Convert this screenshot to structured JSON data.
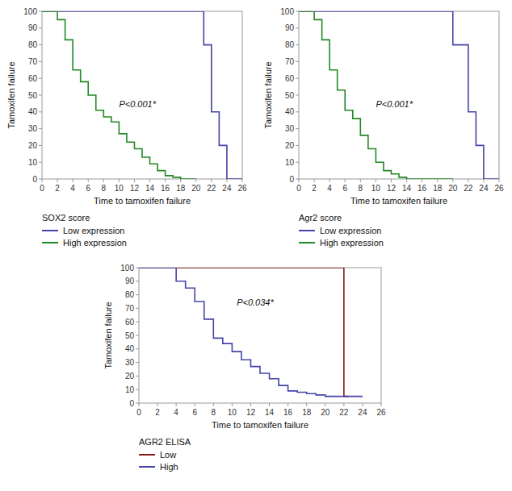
{
  "chart_data": [
    {
      "type": "step",
      "legend_title": "SOX2 score",
      "xlabel": "Time to tamoxifen failure",
      "ylabel": "Tamoxifen failure",
      "annotations": [
        {
          "text": "P<0.001*",
          "x": 10,
          "y": 43
        }
      ],
      "series": [
        {
          "name": "Low expression",
          "color": "#4444aa",
          "x": [
            0,
            21,
            21,
            22,
            22,
            23,
            23,
            24,
            24,
            26
          ],
          "values": [
            100,
            100,
            80,
            80,
            40,
            40,
            20,
            20,
            0,
            0
          ]
        },
        {
          "name": "High expression",
          "color": "#228822",
          "x": [
            0,
            2,
            3,
            4,
            5,
            6,
            7,
            8,
            9,
            10,
            11,
            12,
            13,
            14,
            15,
            16,
            17,
            18,
            19,
            20
          ],
          "values": [
            100,
            95,
            83,
            65,
            58,
            50,
            41,
            37,
            34,
            27,
            22,
            18,
            13,
            9,
            5,
            2,
            1,
            0,
            0,
            0
          ]
        }
      ],
      "xlim": [
        0,
        26
      ],
      "ylim": [
        0,
        100
      ],
      "xticks": [
        0,
        2,
        4,
        6,
        8,
        10,
        12,
        14,
        16,
        18,
        20,
        22,
        24,
        26
      ],
      "yticks": [
        0,
        10,
        20,
        30,
        40,
        50,
        60,
        70,
        80,
        90,
        100
      ],
      "grid": false,
      "legend": "bottom"
    },
    {
      "type": "step",
      "legend_title": "Agr2 score",
      "xlabel": "Time to tamoxifen failure",
      "ylabel": "Tamoxifen failure",
      "annotations": [
        {
          "text": "P<0.001*",
          "x": 10,
          "y": 43
        }
      ],
      "series": [
        {
          "name": "Low expression",
          "color": "#4444aa",
          "x": [
            0,
            20,
            20,
            22,
            22,
            23,
            23,
            24,
            24,
            26
          ],
          "values": [
            100,
            100,
            80,
            80,
            40,
            40,
            20,
            20,
            0,
            0
          ]
        },
        {
          "name": "High expression",
          "color": "#228822",
          "x": [
            0,
            2,
            3,
            4,
            5,
            6,
            7,
            8,
            9,
            10,
            11,
            12,
            13,
            14,
            15,
            16,
            17,
            18,
            19,
            20
          ],
          "values": [
            100,
            95,
            83,
            65,
            53,
            41,
            36,
            26,
            18,
            10,
            5,
            3,
            1,
            0,
            0,
            0,
            0,
            0,
            0,
            0
          ]
        }
      ],
      "xlim": [
        0,
        26
      ],
      "ylim": [
        0,
        100
      ],
      "xticks": [
        0,
        2,
        4,
        6,
        8,
        10,
        12,
        14,
        16,
        18,
        20,
        22,
        24,
        26
      ],
      "yticks": [
        0,
        10,
        20,
        30,
        40,
        50,
        60,
        70,
        80,
        90,
        100
      ],
      "grid": false,
      "legend": "bottom"
    },
    {
      "type": "step",
      "legend_title": "AGR2 ELISA",
      "xlabel": "Time to tamoxifen failure",
      "ylabel": "Tamoxifen failure",
      "annotations": [
        {
          "text": "P<0.034*",
          "x": 10.5,
          "y": 72
        }
      ],
      "series": [
        {
          "name": "Low",
          "color": "#8b1a1a",
          "x": [
            0,
            22,
            22,
            22.5
          ],
          "values": [
            100,
            100,
            5,
            5
          ]
        },
        {
          "name": "High",
          "color": "#4444aa",
          "x": [
            0,
            4,
            5,
            6,
            7,
            8,
            9,
            10,
            11,
            12,
            13,
            14,
            15,
            16,
            17,
            18,
            19,
            20,
            21,
            22,
            23,
            24
          ],
          "values": [
            100,
            90,
            85,
            75,
            62,
            48,
            44,
            38,
            32,
            27,
            22,
            18,
            13,
            9,
            8,
            7,
            6,
            5,
            5,
            5,
            5,
            5
          ]
        }
      ],
      "xlim": [
        0,
        26
      ],
      "ylim": [
        0,
        100
      ],
      "xticks": [
        0,
        2,
        4,
        6,
        8,
        10,
        12,
        14,
        16,
        18,
        20,
        22,
        24,
        26
      ],
      "yticks": [
        0,
        10,
        20,
        30,
        40,
        50,
        60,
        70,
        80,
        90,
        100
      ],
      "grid": false,
      "legend": "bottom"
    }
  ]
}
